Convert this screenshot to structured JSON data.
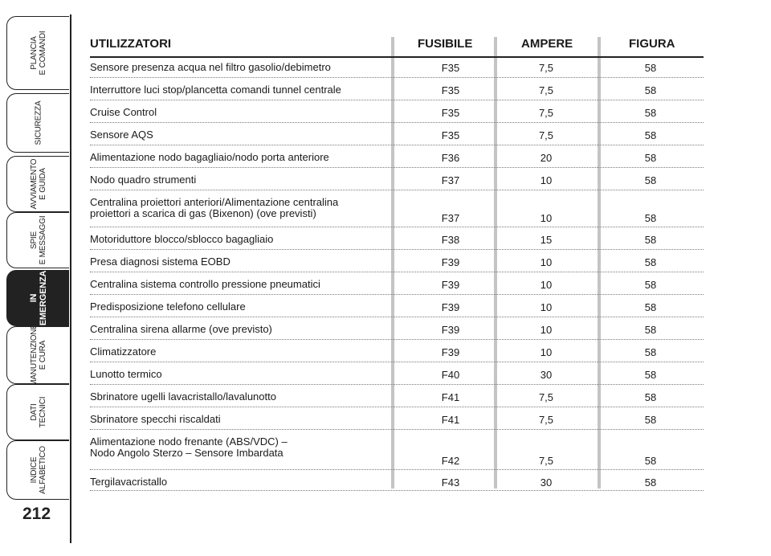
{
  "nav": {
    "tabs": [
      {
        "label": "PLANCIA\nE COMANDI",
        "active": false
      },
      {
        "label": "SICUREZZA",
        "active": false
      },
      {
        "label": "AVVIAMENTO\nE GUIDA",
        "active": false
      },
      {
        "label": "SPIE\nE MESSAGGI",
        "active": false
      },
      {
        "label": "IN\nEMERGENZA",
        "active": true
      },
      {
        "label": "MANUTENZIONE\nE CURA",
        "active": false
      },
      {
        "label": "DATI\nTECNICI",
        "active": false
      },
      {
        "label": "INDICE\nALFABETICO",
        "active": false
      }
    ],
    "page_number": "212"
  },
  "table": {
    "headers": {
      "utilizzatori": "UTILIZZATORI",
      "fusibile": "FUSIBILE",
      "ampere": "AMPERE",
      "figura": "FIGURA"
    },
    "rows": [
      {
        "desc": "Sensore presenza acqua nel filtro gasolio/debimetro",
        "fuse": "F35",
        "amp": "7,5",
        "fig": "58"
      },
      {
        "desc": "Interruttore luci stop/plancetta comandi tunnel centrale",
        "fuse": "F35",
        "amp": "7,5",
        "fig": "58"
      },
      {
        "desc": "Cruise Control",
        "fuse": "F35",
        "amp": "7,5",
        "fig": "58"
      },
      {
        "desc": "Sensore AQS",
        "fuse": "F35",
        "amp": "7,5",
        "fig": "58"
      },
      {
        "desc": "Alimentazione nodo bagagliaio/nodo porta anteriore",
        "fuse": "F36",
        "amp": "20",
        "fig": "58"
      },
      {
        "desc": "Nodo quadro strumenti",
        "fuse": "F37",
        "amp": "10",
        "fig": "58"
      },
      {
        "desc": "Centralina proiettori anteriori/Alimentazione centralina\nproiettori a scarica di gas (Bixenon) (ove previsti)",
        "fuse": "F37",
        "amp": "10",
        "fig": "58"
      },
      {
        "desc": "Motoriduttore blocco/sblocco bagagliaio",
        "fuse": "F38",
        "amp": "15",
        "fig": "58"
      },
      {
        "desc": "Presa diagnosi sistema EOBD",
        "fuse": "F39",
        "amp": "10",
        "fig": "58"
      },
      {
        "desc": "Centralina sistema controllo pressione pneumatici",
        "fuse": "F39",
        "amp": "10",
        "fig": "58"
      },
      {
        "desc": "Predisposizione telefono cellulare",
        "fuse": "F39",
        "amp": "10",
        "fig": "58"
      },
      {
        "desc": "Centralina sirena allarme (ove previsto)",
        "fuse": "F39",
        "amp": "10",
        "fig": "58"
      },
      {
        "desc": "Climatizzatore",
        "fuse": "F39",
        "amp": "10",
        "fig": "58"
      },
      {
        "desc": "Lunotto termico",
        "fuse": "F40",
        "amp": "30",
        "fig": "58"
      },
      {
        "desc": "Sbrinatore ugelli lavacristallo/lavalunotto",
        "fuse": "F41",
        "amp": "7,5",
        "fig": "58"
      },
      {
        "desc": "Sbrinatore specchi riscaldati",
        "fuse": "F41",
        "amp": "7,5",
        "fig": "58"
      },
      {
        "desc": "Alimentazione nodo frenante (ABS/VDC) –\nNodo Angolo Sterzo – Sensore Imbardata",
        "fuse": "F42",
        "amp": "7,5",
        "fig": "58"
      },
      {
        "desc": "Tergilavacristallo",
        "fuse": "F43",
        "amp": "30",
        "fig": "58"
      }
    ]
  }
}
